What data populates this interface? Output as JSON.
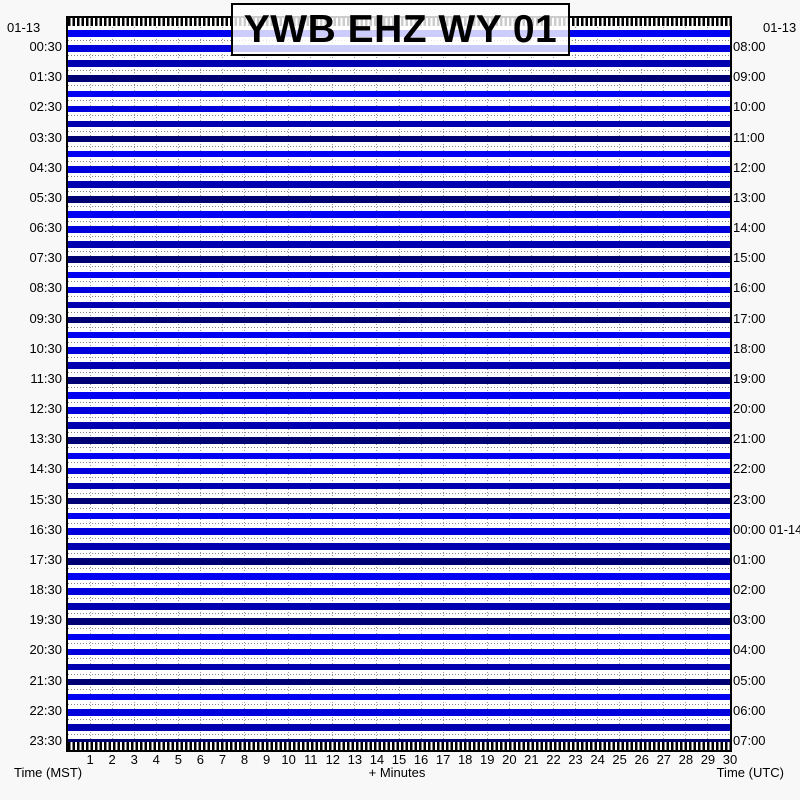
{
  "title": "YWB EHZ WY 01",
  "corner_dates": {
    "top_left": "01-13",
    "top_right": "01-13"
  },
  "chart_data": {
    "type": "line",
    "variant": "helicorder-webicorder-seismogram",
    "title": "YWB EHZ WY 01",
    "date_label_left": "01-13",
    "date_label_right": "01-13",
    "lines_count": 48,
    "x_minutes_per_line": 30,
    "xlabel": "+ Minutes",
    "minutes_tick_labels": [
      "1",
      "2",
      "3",
      "4",
      "5",
      "6",
      "7",
      "8",
      "9",
      "10",
      "11",
      "12",
      "13",
      "14",
      "15",
      "16",
      "17",
      "18",
      "19",
      "20",
      "21",
      "22",
      "23",
      "24",
      "25",
      "26",
      "27",
      "28",
      "29",
      "30"
    ],
    "left_axis": {
      "caption": "Time (MST)",
      "labels": [
        "00:30",
        "01:30",
        "02:30",
        "03:30",
        "04:30",
        "05:30",
        "06:30",
        "07:30",
        "08:30",
        "09:30",
        "10:30",
        "11:30",
        "12:30",
        "13:30",
        "14:30",
        "15:30",
        "16:30",
        "17:30",
        "18:30",
        "19:30",
        "20:30",
        "21:30",
        "22:30",
        "23:30"
      ]
    },
    "right_axis": {
      "caption": "Time (UTC)",
      "labels": [
        "08:00",
        "09:00",
        "10:00",
        "11:00",
        "12:00",
        "13:00",
        "14:00",
        "15:00",
        "16:00",
        "17:00",
        "18:00",
        "19:00",
        "20:00",
        "21:00",
        "22:00",
        "23:00",
        "00:00 01-14",
        "01:00",
        "02:00",
        "03:00",
        "04:00",
        "05:00",
        "06:00",
        "07:00"
      ]
    },
    "trace_amplitude": "quiet-flat",
    "trace_color_cycle": [
      "#0202f2",
      "#0000dd",
      "#0000b0",
      "#000075"
    ],
    "grid": "dotted gray, vertical line each minute, horizontal line between traces",
    "grid_dot_color": "#878787",
    "plot_border_color": "#000000",
    "plot_background": "#ffffff",
    "page_background": "#f8f8f8"
  }
}
